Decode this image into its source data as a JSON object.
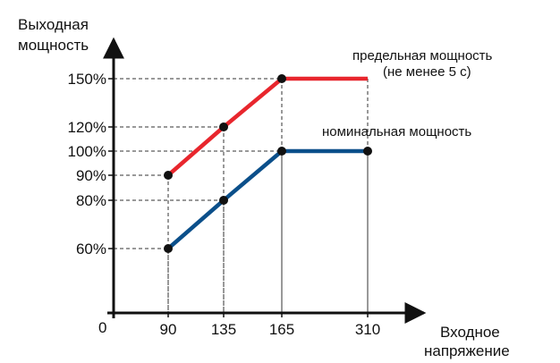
{
  "chart_data": {
    "type": "line",
    "ylabel": [
      "Выходная",
      "мощность"
    ],
    "xlabel": [
      "Входное",
      "напряжение"
    ],
    "origin_label": "0",
    "x_ticks": [
      90,
      135,
      165,
      310
    ],
    "x_tick_labels": [
      "90",
      "135",
      "165",
      "310"
    ],
    "y_ticks": [
      60,
      80,
      90,
      100,
      120,
      150
    ],
    "y_tick_labels": [
      "60%",
      "80%",
      "90%",
      "100%",
      "120%",
      "150%"
    ],
    "grid": "dashed guide lines from marked points to axes",
    "series": [
      {
        "name": "предельная мощность (не менее 5 с)",
        "label_lines": [
          "предельная мощность",
          "(не  менее 5 с)"
        ],
        "color": "#e8262d",
        "points": [
          [
            90,
            90
          ],
          [
            135,
            120
          ],
          [
            165,
            150
          ],
          [
            310,
            150
          ]
        ],
        "markers_at": [
          [
            90,
            90
          ],
          [
            135,
            120
          ],
          [
            165,
            150
          ]
        ]
      },
      {
        "name": "номинальная мощность",
        "label_lines": [
          "номинальная мощность"
        ],
        "color": "#0b4f8a",
        "points": [
          [
            90,
            60
          ],
          [
            135,
            80
          ],
          [
            165,
            100
          ],
          [
            310,
            100
          ]
        ],
        "markers_at": [
          [
            90,
            60
          ],
          [
            135,
            80
          ],
          [
            165,
            100
          ],
          [
            310,
            100
          ]
        ]
      }
    ]
  }
}
